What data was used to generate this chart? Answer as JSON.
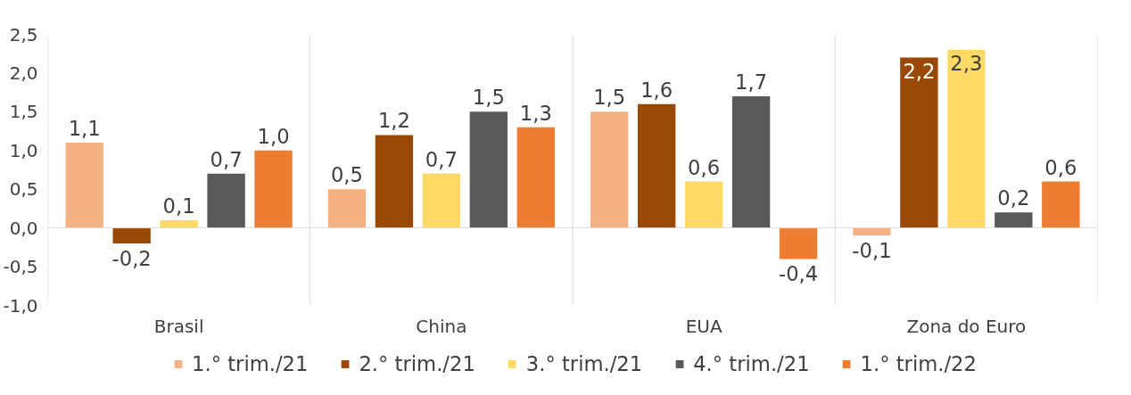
{
  "chart_data": {
    "type": "bar",
    "categories": [
      "Brasil",
      "China",
      "EUA",
      "Zona do Euro"
    ],
    "series": [
      {
        "name": "1.° trim./21",
        "color": "#f4b183",
        "values": [
          1.1,
          0.5,
          1.5,
          -0.1
        ],
        "value_labels": [
          "1,1",
          "0,5",
          "1,5",
          "-0,1"
        ]
      },
      {
        "name": "2.° trim./21",
        "color": "#9a4806",
        "values": [
          -0.2,
          1.2,
          1.6,
          2.2
        ],
        "value_labels": [
          "-0,2",
          "1,2",
          "1,6",
          "2,2"
        ]
      },
      {
        "name": "3.° trim./21",
        "color": "#ffd966",
        "values": [
          0.1,
          0.7,
          0.6,
          2.3
        ],
        "value_labels": [
          "0,1",
          "0,7",
          "0,6",
          "2,3"
        ]
      },
      {
        "name": "4.° trim./21",
        "color": "#595959",
        "values": [
          0.7,
          1.5,
          1.7,
          0.2
        ],
        "value_labels": [
          "0,7",
          "1,5",
          "1,7",
          "0,2"
        ]
      },
      {
        "name": "1.° trim./22",
        "color": "#ed7d31",
        "values": [
          1.0,
          1.3,
          -0.4,
          0.6
        ],
        "value_labels": [
          "1,0",
          "1,3",
          "-0,4",
          "0,6"
        ]
      }
    ],
    "ylim": [
      -1,
      2.5
    ],
    "yticks": [
      {
        "value": -1,
        "label": "-1,0"
      },
      {
        "value": -0.5,
        "label": "-0,5"
      },
      {
        "value": 0,
        "label": "0,0"
      },
      {
        "value": 0.5,
        "label": "0,5"
      },
      {
        "value": 1,
        "label": "1,0"
      },
      {
        "value": 1.5,
        "label": "1,5"
      },
      {
        "value": 2,
        "label": "2,0"
      },
      {
        "value": 2.5,
        "label": "2,5"
      }
    ],
    "ref_lines": [
      {
        "axis": "y",
        "value": 0,
        "label": null,
        "color": "#d9d9d9"
      }
    ],
    "grid": "x",
    "legend": "bottom"
  }
}
